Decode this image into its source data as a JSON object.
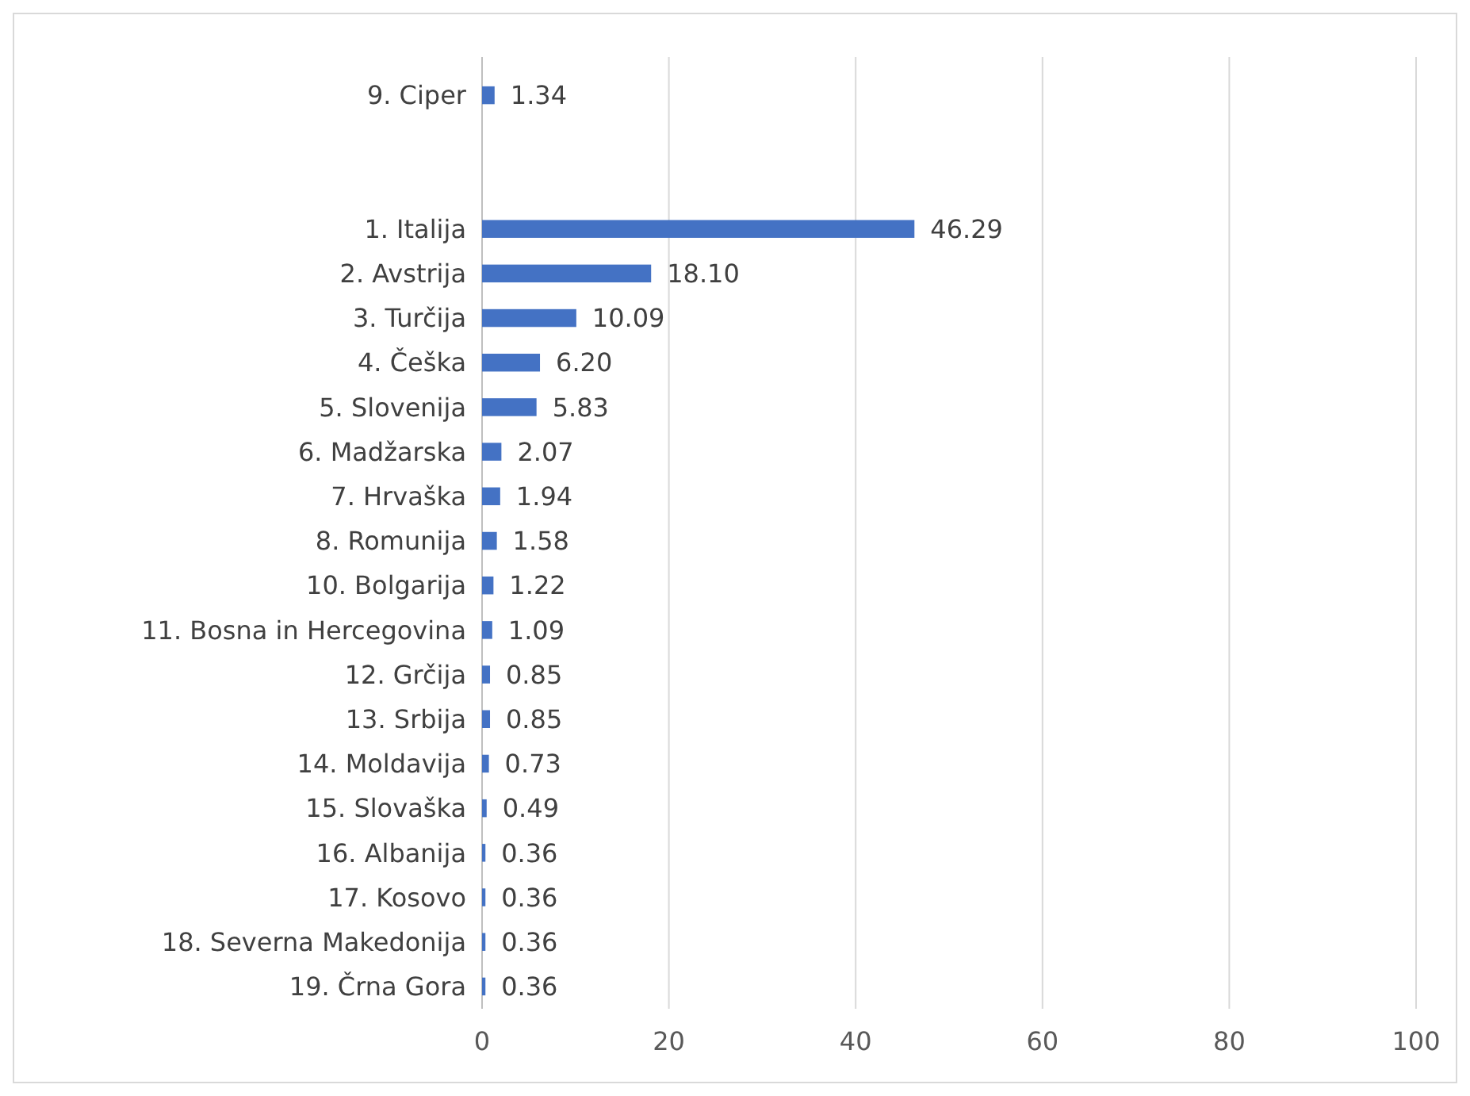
{
  "chart_data": {
    "type": "bar",
    "orientation": "horizontal",
    "categories": [
      "9. Ciper",
      null,
      null,
      "1. Italija",
      "2. Avstrija",
      "3. Turčija",
      "4. Češka",
      "5. Slovenija",
      "6. Madžarska",
      "7. Hrvaška",
      "8. Romunija",
      "10. Bolgarija",
      "11. Bosna in Hercegovina",
      "12. Grčija",
      "13. Srbija",
      "14. Moldavija",
      "15. Slovaška",
      "16. Albanija",
      "17. Kosovo",
      "18. Severna Makedonija",
      "19. Črna Gora"
    ],
    "values": [
      1.34,
      null,
      null,
      46.29,
      18.1,
      10.09,
      6.2,
      5.83,
      2.07,
      1.94,
      1.58,
      1.22,
      1.09,
      0.85,
      0.85,
      0.73,
      0.49,
      0.36,
      0.36,
      0.36,
      0.36
    ],
    "value_labels": [
      "1.34",
      null,
      null,
      "46.29",
      "18.10",
      "10.09",
      "6.20",
      "5.83",
      "2.07",
      "1.94",
      "1.58",
      "1.22",
      "1.09",
      "0.85",
      "0.85",
      "0.73",
      "0.49",
      "0.36",
      "0.36",
      "0.36",
      "0.36"
    ],
    "color": "#4472c4",
    "xlim": [
      0,
      100
    ],
    "xticks": [
      0,
      20,
      40,
      60,
      80,
      100
    ],
    "grid": "x"
  }
}
